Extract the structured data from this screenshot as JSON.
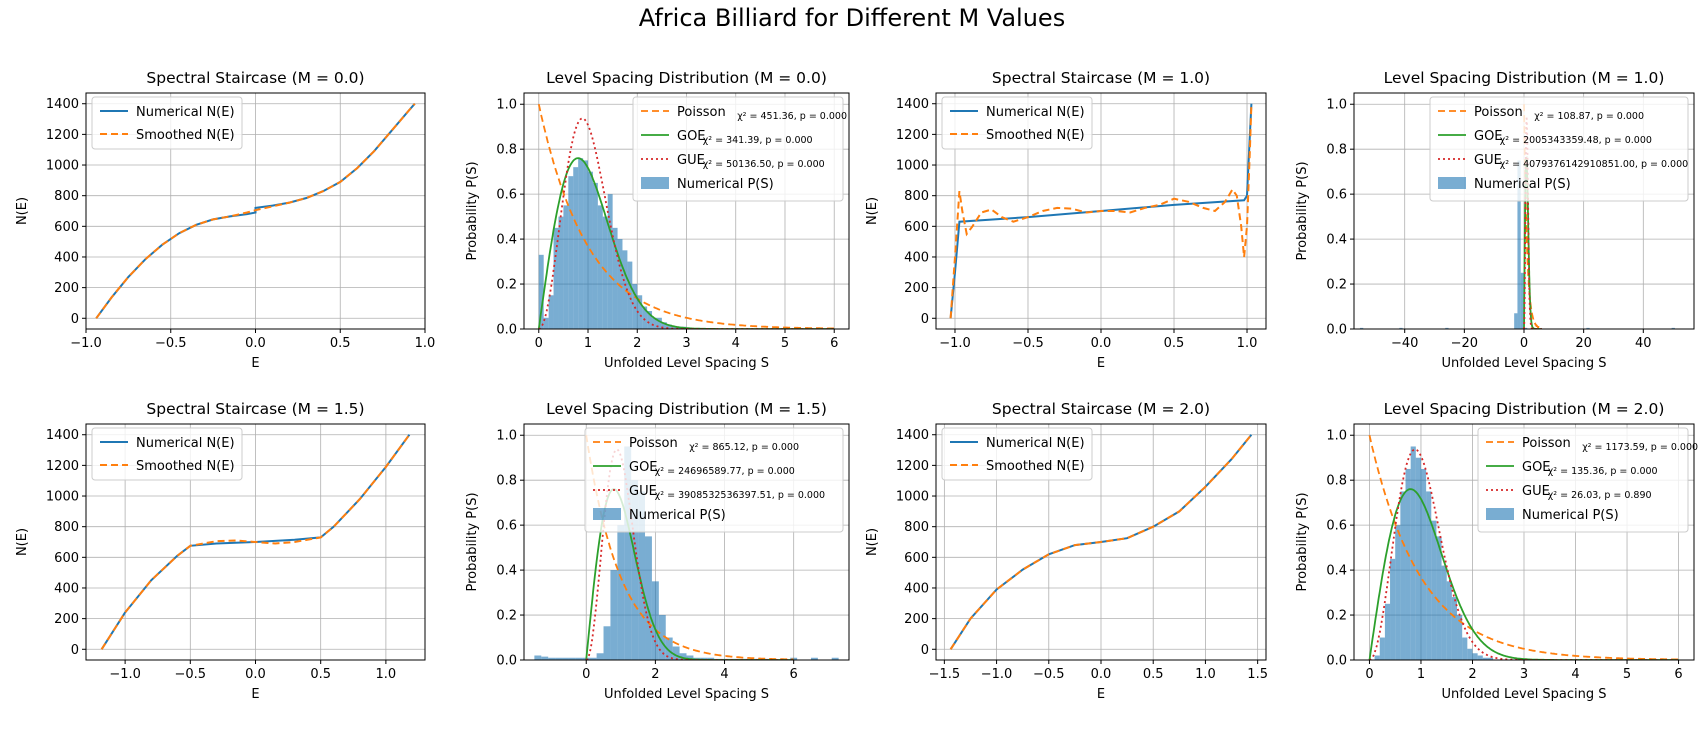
{
  "suptitle": "Africa Billiard for Different M Values",
  "colors": {
    "numerical": "#1f77b4",
    "smoothed": "#ff7f0e",
    "goe": "#2ca02c",
    "gue": "#d62728",
    "hist": "#1f77b4",
    "grid": "#b0b0b0"
  },
  "chart_data": [
    {
      "type": "line",
      "title": "Spectral Staircase (M = 0.0)",
      "xlabel": "E",
      "ylabel": "N(E)",
      "xlim": [
        -1.0,
        1.0
      ],
      "ylim": [
        -70,
        1470
      ],
      "xticks": [
        -1.0,
        -0.5,
        0.0,
        0.5,
        1.0
      ],
      "xtick_labels": [
        "−1.0",
        "−0.5",
        "0.0",
        "0.5",
        "1.0"
      ],
      "yticks": [
        0,
        200,
        400,
        600,
        800,
        1000,
        1200,
        1400
      ],
      "ytick_labels": [
        "0",
        "200",
        "400",
        "600",
        "800",
        "1000",
        "1200",
        "1400"
      ],
      "grid": true,
      "legend_position": "upper-left",
      "series": [
        {
          "name": "Numerical N(E)",
          "style": "solid",
          "x": [
            -0.94,
            -0.85,
            -0.75,
            -0.65,
            -0.55,
            -0.45,
            -0.35,
            -0.25,
            -0.15,
            -0.05,
            0.0,
            0.0,
            0.1,
            0.2,
            0.3,
            0.4,
            0.5,
            0.6,
            0.7,
            0.8,
            0.9,
            0.94
          ],
          "y": [
            0,
            135,
            270,
            385,
            480,
            555,
            610,
            645,
            665,
            680,
            690,
            720,
            735,
            755,
            785,
            830,
            890,
            980,
            1090,
            1220,
            1350,
            1400
          ]
        },
        {
          "name": "Smoothed N(E)",
          "style": "dashed",
          "x": [
            -0.94,
            -0.85,
            -0.75,
            -0.65,
            -0.55,
            -0.45,
            -0.35,
            -0.25,
            -0.15,
            -0.05,
            0.0,
            0.1,
            0.2,
            0.3,
            0.4,
            0.5,
            0.6,
            0.7,
            0.8,
            0.9,
            0.94
          ],
          "y": [
            0,
            135,
            270,
            385,
            480,
            555,
            610,
            645,
            665,
            690,
            705,
            730,
            755,
            785,
            830,
            890,
            980,
            1090,
            1220,
            1350,
            1400
          ]
        }
      ]
    },
    {
      "type": "bar",
      "title": "Level Spacing Distribution (M = 0.0)",
      "xlabel": "Unfolded Level Spacing S",
      "ylabel": "Probability P(S)",
      "xlim": [
        -0.3,
        6.3
      ],
      "ylim": [
        0.0,
        1.05
      ],
      "xticks": [
        0,
        1,
        2,
        3,
        4,
        5,
        6
      ],
      "xtick_labels": [
        "0",
        "1",
        "2",
        "3",
        "4",
        "5",
        "6"
      ],
      "yticks": [
        0.0,
        0.2,
        0.4,
        0.6,
        0.8,
        1.0
      ],
      "ytick_labels": [
        "0.0",
        "0.2",
        "0.4",
        "0.6",
        "0.8",
        "1.0"
      ],
      "grid": true,
      "legend_position": "upper-right",
      "series": [
        {
          "name": "Poisson",
          "fit": "χ² = 451.36, p = 0.000",
          "kind": "poisson"
        },
        {
          "name": "GOE",
          "fit": "χ² = 341.39, p = 0.000",
          "kind": "goe"
        },
        {
          "name": "GUE",
          "fit": "χ² = 50136.50, p = 0.000",
          "kind": "gue"
        }
      ],
      "hist": {
        "name": "Numerical P(S)",
        "start": 0.0,
        "width": 0.1,
        "values": [
          0.33,
          0.05,
          0.15,
          0.45,
          0.5,
          0.55,
          0.68,
          0.72,
          0.76,
          0.75,
          0.7,
          0.65,
          0.55,
          0.5,
          0.6,
          0.45,
          0.4,
          0.35,
          0.3,
          0.2,
          0.15,
          0.1,
          0.08,
          0.05,
          0.05,
          0.03,
          0.02,
          0.01,
          0.01,
          0.01
        ]
      }
    },
    {
      "type": "line",
      "title": "Spectral Staircase (M = 1.0)",
      "xlabel": "E",
      "ylabel": "N(E)",
      "xlim": [
        -1.13,
        1.13
      ],
      "ylim": [
        -70,
        1470
      ],
      "xticks": [
        -1.0,
        -0.5,
        0.0,
        0.5,
        1.0
      ],
      "xtick_labels": [
        "−1.0",
        "−0.5",
        "0.0",
        "0.5",
        "1.0"
      ],
      "yticks": [
        0,
        200,
        400,
        600,
        800,
        1000,
        1200,
        1400
      ],
      "ytick_labels": [
        "0",
        "200",
        "400",
        "600",
        "800",
        "1000",
        "1200",
        "1400"
      ],
      "grid": true,
      "legend_position": "upper-left",
      "series": [
        {
          "name": "Numerical N(E)",
          "style": "solid",
          "x": [
            -1.03,
            -1.0,
            -0.97,
            -0.5,
            0.0,
            0.5,
            0.98,
            1.0,
            1.02,
            1.03
          ],
          "y": [
            0,
            300,
            630,
            660,
            700,
            740,
            770,
            800,
            1200,
            1400
          ]
        },
        {
          "name": "Smoothed N(E)",
          "style": "dashed",
          "x": [
            -1.03,
            -1.0,
            -0.97,
            -0.95,
            -0.92,
            -0.88,
            -0.82,
            -0.75,
            -0.68,
            -0.6,
            -0.5,
            -0.4,
            -0.3,
            -0.2,
            -0.1,
            0.0,
            0.1,
            0.2,
            0.3,
            0.4,
            0.5,
            0.55,
            0.6,
            0.7,
            0.78,
            0.85,
            0.9,
            0.93,
            0.96,
            0.98,
            1.0,
            1.02,
            1.03
          ],
          "y": [
            0,
            400,
            830,
            700,
            550,
            600,
            690,
            710,
            660,
            630,
            660,
            700,
            720,
            715,
            690,
            700,
            700,
            690,
            720,
            740,
            780,
            770,
            760,
            720,
            700,
            760,
            840,
            800,
            600,
            400,
            600,
            1100,
            1400
          ]
        }
      ]
    },
    {
      "type": "bar",
      "title": "Level Spacing Distribution (M = 1.0)",
      "xlabel": "Unfolded Level Spacing S",
      "ylabel": "Probability P(S)",
      "xlim": [
        -57,
        57
      ],
      "ylim": [
        0.0,
        1.05
      ],
      "xticks": [
        -40,
        -20,
        0,
        20,
        40
      ],
      "xtick_labels": [
        "−40",
        "−20",
        "0",
        "20",
        "40"
      ],
      "yticks": [
        0.0,
        0.2,
        0.4,
        0.6,
        0.8,
        1.0
      ],
      "ytick_labels": [
        "0.0",
        "0.2",
        "0.4",
        "0.6",
        "0.8",
        "1.0"
      ],
      "grid": true,
      "legend_position": "upper-right",
      "series": [
        {
          "name": "Poisson",
          "fit": "χ² = 108.87, p = 0.000",
          "kind": "poisson"
        },
        {
          "name": "GOE",
          "fit": "χ² = 2005343359.48, p = 0.000",
          "kind": "goe"
        },
        {
          "name": "GUE",
          "fit": "χ² = 4079376142910851.00, p = 0.000",
          "kind": "gue"
        }
      ],
      "hist": {
        "name": "Numerical P(S)",
        "start": -55,
        "width": 1.1,
        "values": [
          0.005,
          0,
          0,
          0,
          0,
          0,
          0,
          0,
          0,
          0,
          0,
          0,
          0.005,
          0,
          0,
          0,
          0,
          0,
          0,
          0,
          0,
          0,
          0,
          0,
          0,
          0,
          0.005,
          0,
          0,
          0,
          0,
          0,
          0,
          0,
          0,
          0,
          0,
          0,
          0,
          0,
          0,
          0,
          0,
          0,
          0,
          0,
          0,
          0.07,
          0.75,
          0.25,
          0.005,
          0,
          0,
          0,
          0,
          0,
          0,
          0,
          0,
          0,
          0,
          0,
          0,
          0,
          0,
          0,
          0,
          0,
          0,
          0.005,
          0,
          0,
          0,
          0,
          0,
          0,
          0,
          0,
          0,
          0,
          0,
          0,
          0,
          0,
          0,
          0,
          0,
          0,
          0,
          0,
          0,
          0,
          0,
          0,
          0,
          0.005,
          0,
          0,
          0,
          0
        ]
      }
    },
    {
      "type": "line",
      "title": "Spectral Staircase (M = 1.5)",
      "xlabel": "E",
      "ylabel": "N(E)",
      "xlim": [
        -1.3,
        1.3
      ],
      "ylim": [
        -70,
        1470
      ],
      "xticks": [
        -1.0,
        -0.5,
        0.0,
        0.5,
        1.0
      ],
      "xtick_labels": [
        "−1.0",
        "−0.5",
        "0.0",
        "0.5",
        "1.0"
      ],
      "yticks": [
        0,
        200,
        400,
        600,
        800,
        1000,
        1200,
        1400
      ],
      "ytick_labels": [
        "0",
        "200",
        "400",
        "600",
        "800",
        "1000",
        "1200",
        "1400"
      ],
      "grid": true,
      "legend_position": "upper-left",
      "series": [
        {
          "name": "Numerical N(E)",
          "style": "solid",
          "x": [
            -1.18,
            -1.0,
            -0.8,
            -0.6,
            -0.5,
            -0.3,
            0.0,
            0.3,
            0.5,
            0.6,
            0.8,
            1.0,
            1.18
          ],
          "y": [
            0,
            240,
            450,
            610,
            675,
            690,
            700,
            715,
            730,
            800,
            980,
            1190,
            1400
          ]
        },
        {
          "name": "Smoothed N(E)",
          "style": "dashed",
          "x": [
            -1.18,
            -1.0,
            -0.8,
            -0.6,
            -0.5,
            -0.3,
            -0.15,
            0.0,
            0.15,
            0.3,
            0.5,
            0.6,
            0.8,
            1.0,
            1.18
          ],
          "y": [
            0,
            240,
            450,
            610,
            675,
            705,
            710,
            700,
            690,
            700,
            730,
            800,
            980,
            1190,
            1400
          ]
        }
      ]
    },
    {
      "type": "bar",
      "title": "Level Spacing Distribution (M = 1.5)",
      "xlabel": "Unfolded Level Spacing S",
      "ylabel": "Probability P(S)",
      "xlim": [
        -1.8,
        7.6
      ],
      "ylim": [
        0.0,
        1.05
      ],
      "xticks": [
        0,
        2,
        4,
        6
      ],
      "xtick_labels": [
        "0",
        "2",
        "4",
        "6"
      ],
      "yticks": [
        0.0,
        0.2,
        0.4,
        0.6,
        0.8,
        1.0
      ],
      "ytick_labels": [
        "0.0",
        "0.2",
        "0.4",
        "0.6",
        "0.8",
        "1.0"
      ],
      "grid": true,
      "legend_position": "upper-right",
      "series": [
        {
          "name": "Poisson",
          "fit": "χ² = 865.12, p = 0.000",
          "kind": "poisson"
        },
        {
          "name": "GOE",
          "fit": "χ² = 24696589.77, p = 0.000",
          "kind": "goe"
        },
        {
          "name": "GUE",
          "fit": "χ² = 3908532536397.51, p = 0.000",
          "kind": "gue"
        }
      ],
      "hist": {
        "name": "Numerical P(S)",
        "start": -1.5,
        "width": 0.2,
        "values": [
          0.02,
          0.015,
          0.01,
          0.01,
          0.01,
          0.01,
          0.01,
          0.01,
          0.01,
          0.03,
          0.15,
          0.4,
          0.6,
          0.95,
          0.8,
          0.75,
          0.55,
          0.35,
          0.2,
          0.1,
          0.06,
          0.03,
          0.02,
          0.01,
          0.01,
          0.01,
          0.005,
          0.005,
          0.005,
          0.005,
          0.005,
          0.005,
          0.005,
          0.005,
          0,
          0,
          0,
          0.01,
          0,
          0,
          0.01,
          0,
          0,
          0.01,
          0
        ]
      }
    },
    {
      "type": "line",
      "title": "Spectral Staircase (M = 2.0)",
      "xlabel": "E",
      "ylabel": "N(E)",
      "xlim": [
        -1.58,
        1.58
      ],
      "ylim": [
        -70,
        1470
      ],
      "xticks": [
        -1.5,
        -1.0,
        -0.5,
        0.0,
        0.5,
        1.0,
        1.5
      ],
      "xtick_labels": [
        "−1.5",
        "−1.0",
        "−0.5",
        "0.0",
        "0.5",
        "1.0",
        "1.5"
      ],
      "yticks": [
        0,
        200,
        400,
        600,
        800,
        1000,
        1200,
        1400
      ],
      "ytick_labels": [
        "0",
        "200",
        "400",
        "600",
        "800",
        "1000",
        "1200",
        "1400"
      ],
      "grid": true,
      "legend_position": "upper-left",
      "series": [
        {
          "name": "Numerical N(E)",
          "style": "solid",
          "x": [
            -1.44,
            -1.25,
            -1.0,
            -0.75,
            -0.5,
            -0.25,
            0.0,
            0.25,
            0.5,
            0.75,
            1.0,
            1.25,
            1.44
          ],
          "y": [
            0,
            200,
            390,
            520,
            620,
            680,
            700,
            725,
            800,
            900,
            1060,
            1240,
            1400
          ]
        },
        {
          "name": "Smoothed N(E)",
          "style": "dashed",
          "x": [
            -1.44,
            -1.25,
            -1.0,
            -0.75,
            -0.5,
            -0.25,
            0.0,
            0.25,
            0.5,
            0.75,
            1.0,
            1.25,
            1.44
          ],
          "y": [
            0,
            200,
            390,
            520,
            620,
            680,
            700,
            725,
            800,
            900,
            1060,
            1240,
            1400
          ]
        }
      ]
    },
    {
      "type": "bar",
      "title": "Level Spacing Distribution (M = 2.0)",
      "xlabel": "Unfolded Level Spacing S",
      "ylabel": "Probability P(S)",
      "xlim": [
        -0.3,
        6.3
      ],
      "ylim": [
        0.0,
        1.05
      ],
      "xticks": [
        0,
        1,
        2,
        3,
        4,
        5,
        6
      ],
      "xtick_labels": [
        "0",
        "1",
        "2",
        "3",
        "4",
        "5",
        "6"
      ],
      "yticks": [
        0.0,
        0.2,
        0.4,
        0.6,
        0.8,
        1.0
      ],
      "ytick_labels": [
        "0.0",
        "0.2",
        "0.4",
        "0.6",
        "0.8",
        "1.0"
      ],
      "grid": true,
      "legend_position": "upper-right",
      "series": [
        {
          "name": "Poisson",
          "fit": "χ² = 1173.59, p = 0.000",
          "kind": "poisson"
        },
        {
          "name": "GOE",
          "fit": "χ² = 135.36, p = 0.000",
          "kind": "goe"
        },
        {
          "name": "GUE",
          "fit": "χ² = 26.03, p = 0.890",
          "kind": "gue"
        }
      ],
      "hist": {
        "name": "Numerical P(S)",
        "start": 0.0,
        "width": 0.1,
        "values": [
          0,
          0.02,
          0.1,
          0.25,
          0.45,
          0.6,
          0.75,
          0.85,
          0.95,
          0.9,
          0.85,
          0.75,
          0.62,
          0.55,
          0.42,
          0.35,
          0.28,
          0.2,
          0.1,
          0.05,
          0.03,
          0.02,
          0.01,
          0.01,
          0,
          0,
          0,
          0,
          0,
          0
        ]
      }
    }
  ]
}
